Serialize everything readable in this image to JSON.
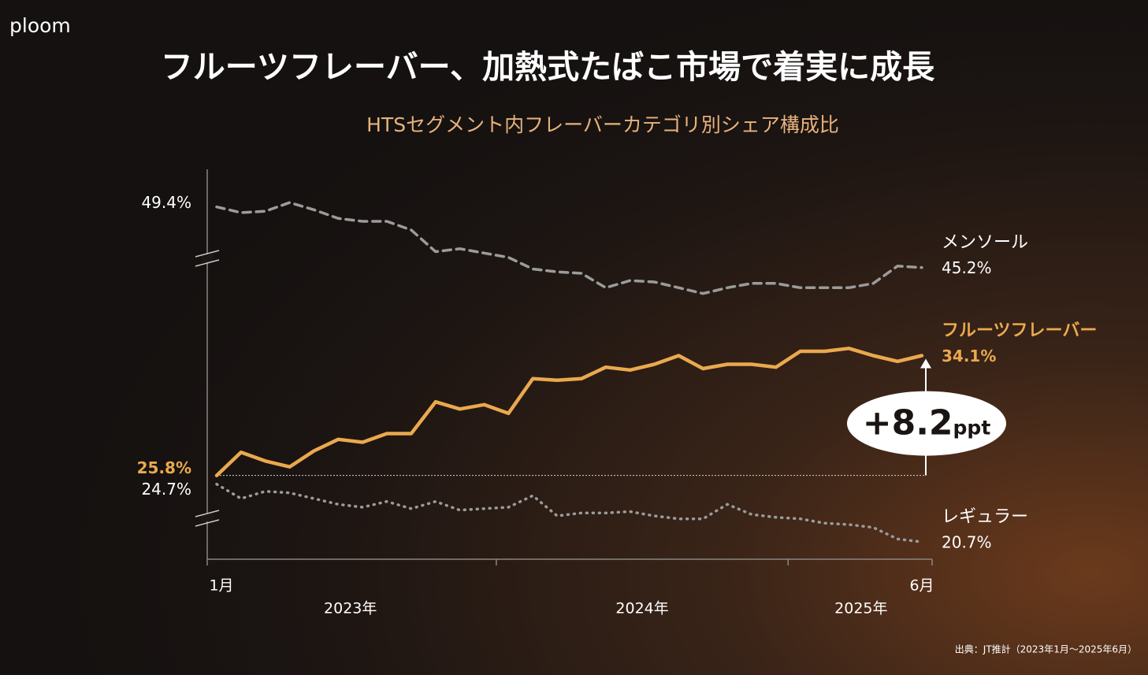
{
  "brand": "ploom",
  "source": "出典：JT推計（2023年1月～2025年6月）",
  "chart_data": {
    "type": "line",
    "title": "フルーツフレーバー、加熱式たばこ市場で着実に成長",
    "subtitle": "HTSセグメント内フレーバーカテゴリ別シェア構成比",
    "categories": [
      "1月",
      null,
      null,
      null,
      null,
      null,
      null,
      null,
      null,
      null,
      null,
      null,
      null,
      null,
      null,
      null,
      null,
      null,
      null,
      null,
      null,
      null,
      null,
      null,
      null,
      null,
      null,
      null,
      null,
      "6月"
    ],
    "x_groups": [
      "2023年",
      "2024年",
      "2025年"
    ],
    "annotation": {
      "text": "+8.2",
      "unit": "ppt"
    },
    "series": [
      {
        "name": "メンソール",
        "color": "#9b9b9b",
        "style": "dashed",
        "ylim": [
          25,
          52
        ],
        "values": [
          49.4,
          49.0,
          49.1,
          49.7,
          49.2,
          48.6,
          48.4,
          48.4,
          47.8,
          46.3,
          46.5,
          46.2,
          45.9,
          45.1,
          44.9,
          44.8,
          43.8,
          44.3,
          44.2,
          43.8,
          43.4,
          43.8,
          44.1,
          44.1,
          43.8,
          43.8,
          43.8,
          44.1,
          45.3,
          45.2
        ],
        "value_labels": [
          "49.4%",
          null,
          null,
          null,
          null,
          null,
          null,
          null,
          null,
          null,
          null,
          null,
          null,
          null,
          null,
          null,
          null,
          null,
          null,
          null,
          null,
          null,
          null,
          null,
          null,
          null,
          null,
          null,
          null,
          "45.2%"
        ]
      },
      {
        "name": "フルーツフレーバー",
        "color": "#eaa94e",
        "style": "solid",
        "ylim": [
          20,
          47
        ],
        "values": [
          25.8,
          27.4,
          26.8,
          26.4,
          27.5,
          28.3,
          28.1,
          28.7,
          28.7,
          30.9,
          30.4,
          30.7,
          30.1,
          32.5,
          32.4,
          32.5,
          33.3,
          33.1,
          33.5,
          34.1,
          33.2,
          33.5,
          33.5,
          33.3,
          34.4,
          34.4,
          34.6,
          34.1,
          33.7,
          34.1
        ],
        "value_labels": [
          "25.8%",
          null,
          null,
          null,
          null,
          null,
          null,
          null,
          null,
          null,
          null,
          null,
          null,
          null,
          null,
          null,
          null,
          null,
          null,
          null,
          null,
          null,
          null,
          null,
          null,
          null,
          null,
          null,
          null,
          "34.1%"
        ]
      },
      {
        "name": "レギュラー",
        "color": "#9b9b9b",
        "style": "dotted",
        "ylim": [
          19.5,
          46.5
        ],
        "values": [
          24.7,
          23.7,
          24.2,
          24.1,
          23.7,
          23.3,
          23.1,
          23.5,
          23.0,
          23.5,
          22.9,
          23.0,
          23.1,
          23.9,
          22.5,
          22.7,
          22.7,
          22.8,
          22.5,
          22.3,
          22.3,
          23.3,
          22.6,
          22.4,
          22.3,
          22.0,
          21.9,
          21.7,
          20.9,
          20.7
        ],
        "value_labels": [
          "24.7%",
          null,
          null,
          null,
          null,
          null,
          null,
          null,
          null,
          null,
          null,
          null,
          null,
          null,
          null,
          null,
          null,
          null,
          null,
          null,
          null,
          null,
          null,
          null,
          null,
          null,
          null,
          null,
          null,
          "20.7%"
        ]
      }
    ]
  }
}
